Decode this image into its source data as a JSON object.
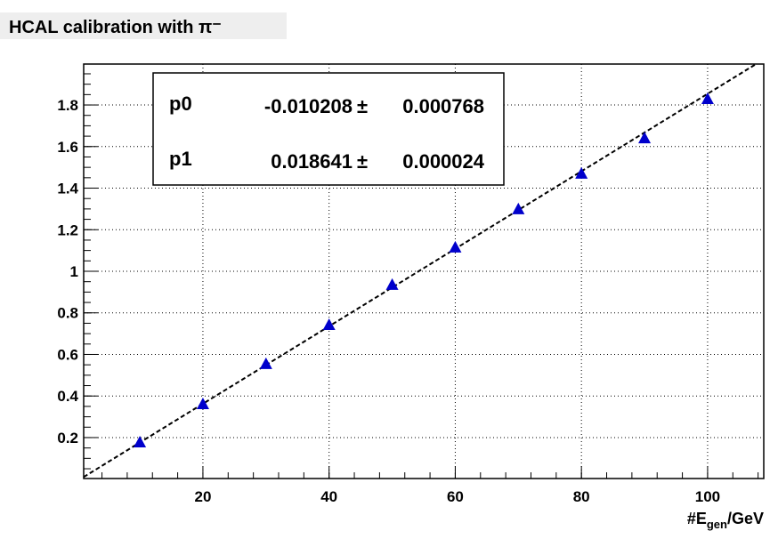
{
  "chart_data": {
    "type": "scatter",
    "title": "HCAL calibration with π⁻",
    "x_label": [
      "#E",
      "gen",
      "/GeV"
    ],
    "x": [
      10,
      20,
      30,
      40,
      50,
      60,
      70,
      80,
      90,
      100
    ],
    "series": [
      {
        "color": "#0000cc",
        "values": [
          0.174,
          0.358,
          0.551,
          0.739,
          0.932,
          1.112,
          1.296,
          1.467,
          1.637,
          1.826
        ]
      }
    ],
    "xlim": [
      1.1,
      108.9
    ],
    "ylim": [
      0.003,
      1.997
    ],
    "xticks": [
      20,
      40,
      60,
      80,
      100
    ],
    "yticks": [
      0.2,
      0.4,
      0.6,
      0.8,
      1,
      1.2,
      1.4,
      1.6,
      1.8
    ],
    "grid": true,
    "fit": {
      "symbol": "±",
      "params": [
        {
          "name": "p0",
          "value": -0.010208,
          "error": 0.000768
        },
        {
          "name": "p1",
          "value": 0.018641,
          "error": 2.4e-05
        }
      ]
    }
  }
}
